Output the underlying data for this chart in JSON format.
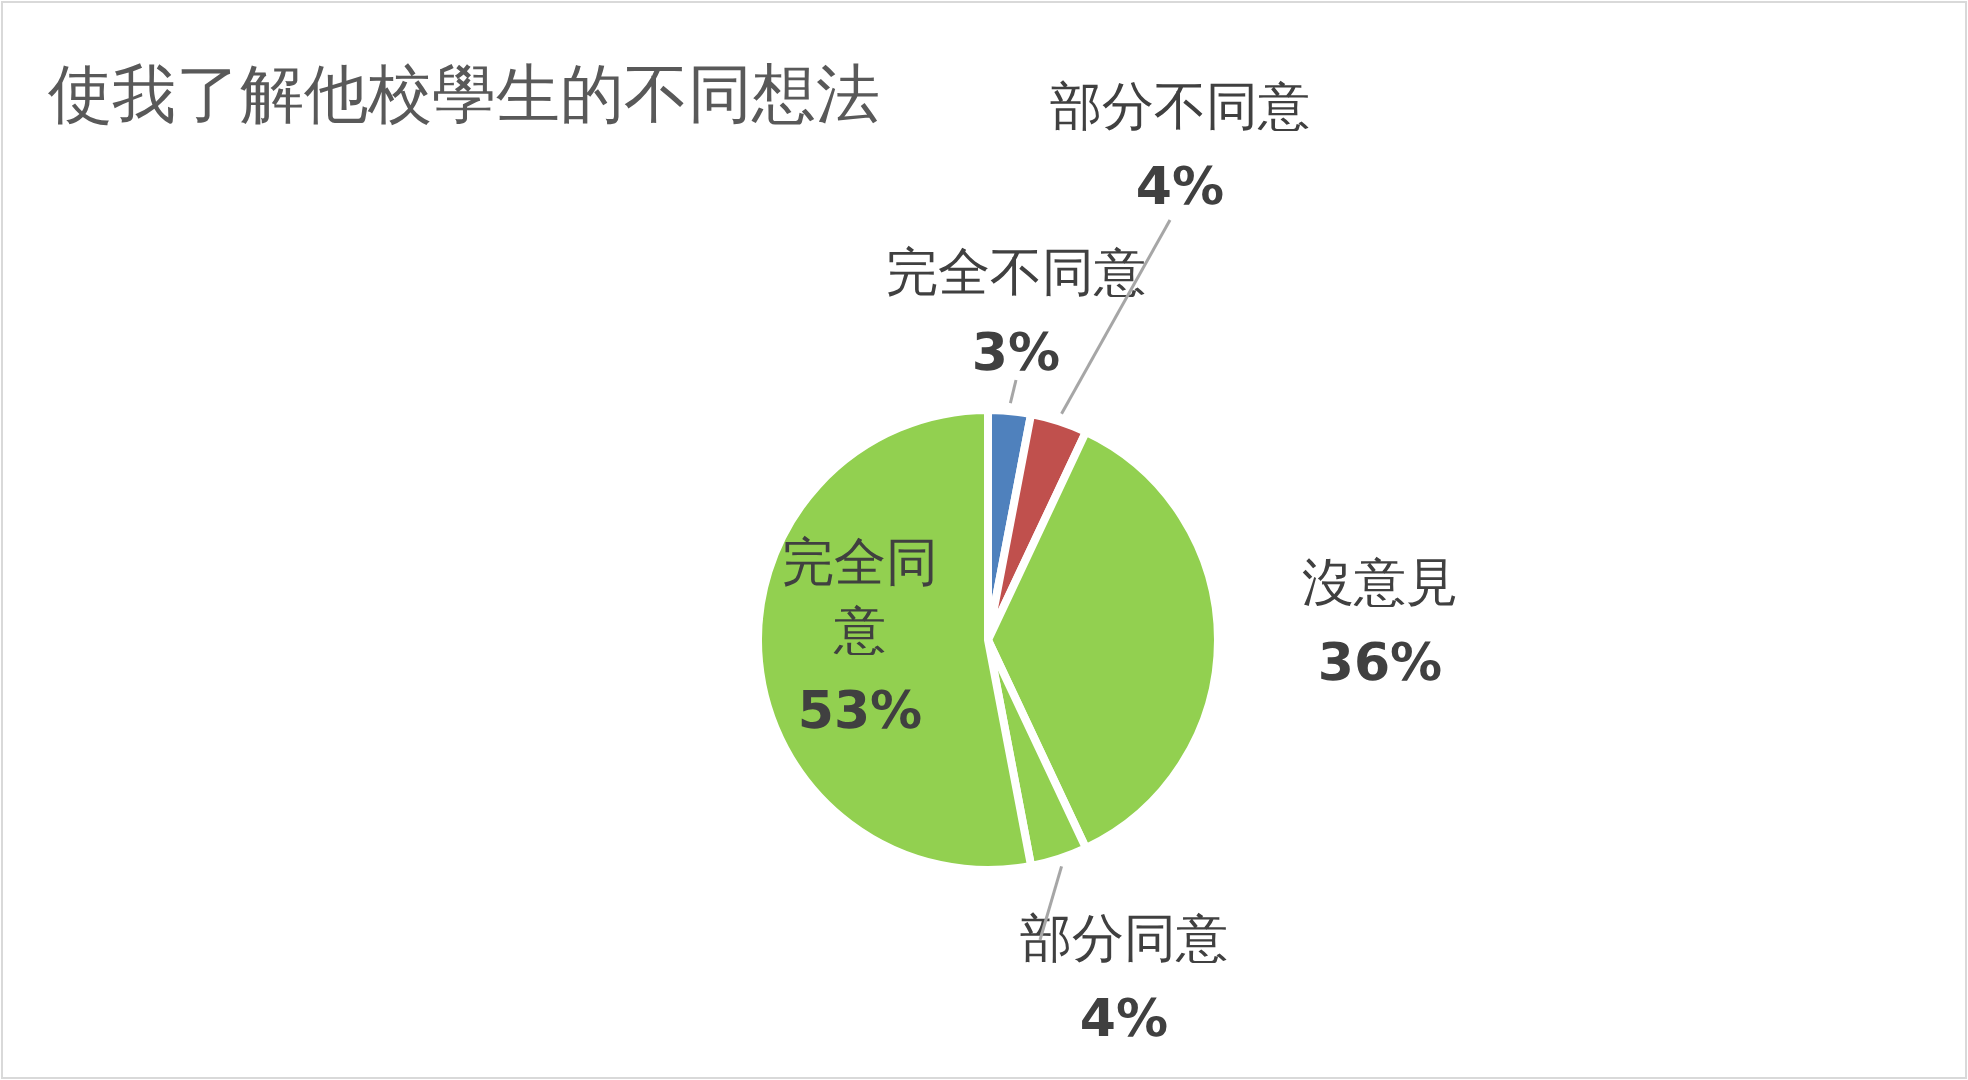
{
  "chart_data": {
    "type": "pie",
    "title": "使我了解他校學生的不同想法",
    "categories": [
      "完全不同意",
      "部分不同意",
      "沒意見",
      "部分同意",
      "完全同意"
    ],
    "values": [
      3,
      4,
      36,
      4,
      53
    ],
    "colors": [
      "#4f81bd",
      "#c0504d",
      "#92d050",
      "#92d050",
      "#92d050"
    ],
    "value_labels": [
      "3%",
      "4%",
      "36%",
      "4%",
      "53%"
    ]
  }
}
